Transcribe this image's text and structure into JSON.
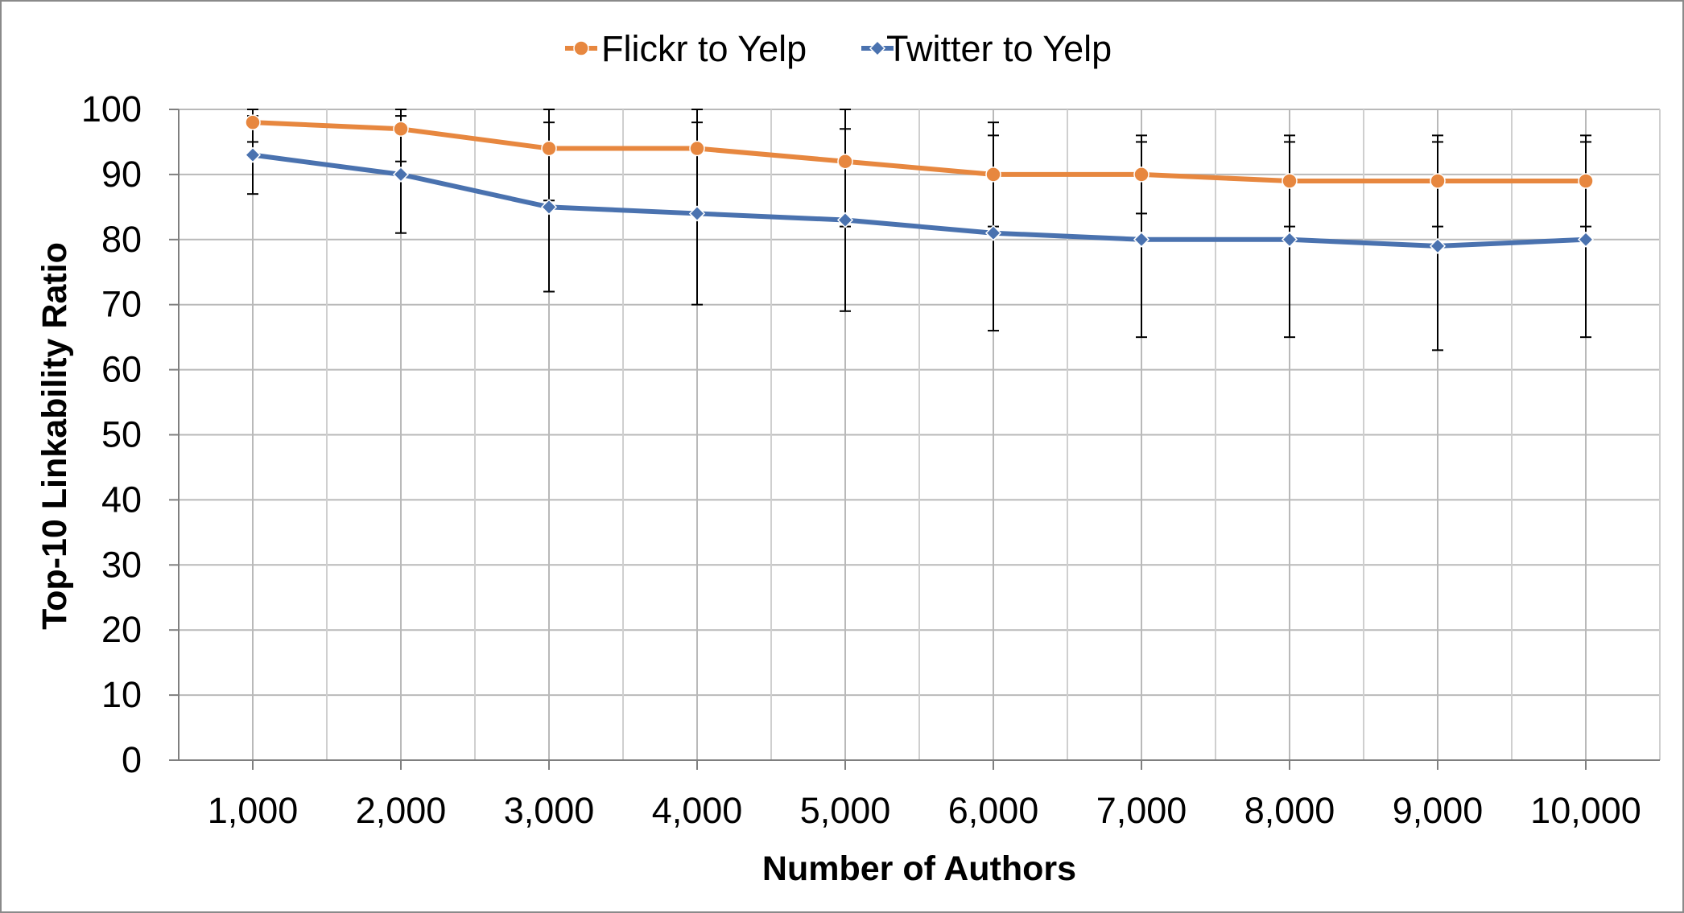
{
  "chart_data": {
    "type": "line",
    "xlabel": "Number of Authors",
    "ylabel": "Top-10 Linkability Ratio",
    "categories": [
      "1,000",
      "2,000",
      "3,000",
      "4,000",
      "5,000",
      "6,000",
      "7,000",
      "8,000",
      "9,000",
      "10,000"
    ],
    "y_ticks": [
      "0",
      "10",
      "20",
      "30",
      "40",
      "50",
      "60",
      "70",
      "80",
      "90",
      "100"
    ],
    "ylim": [
      0,
      100
    ],
    "grid": true,
    "legend_position": "top",
    "series": [
      {
        "name": "Flickr to Yelp",
        "color": "#E7873F",
        "marker": "circle",
        "values": [
          98,
          97,
          94,
          94,
          92,
          90,
          90,
          89,
          89,
          89
        ],
        "error": [
          3,
          5,
          8,
          10,
          10,
          8,
          6,
          7,
          7,
          7
        ]
      },
      {
        "name": "Twitter to Yelp",
        "color": "#4A72AF",
        "marker": "diamond",
        "values": [
          93,
          90,
          85,
          84,
          83,
          81,
          80,
          80,
          79,
          80
        ],
        "error": [
          6,
          9,
          13,
          14,
          14,
          15,
          15,
          15,
          16,
          15
        ]
      }
    ]
  }
}
